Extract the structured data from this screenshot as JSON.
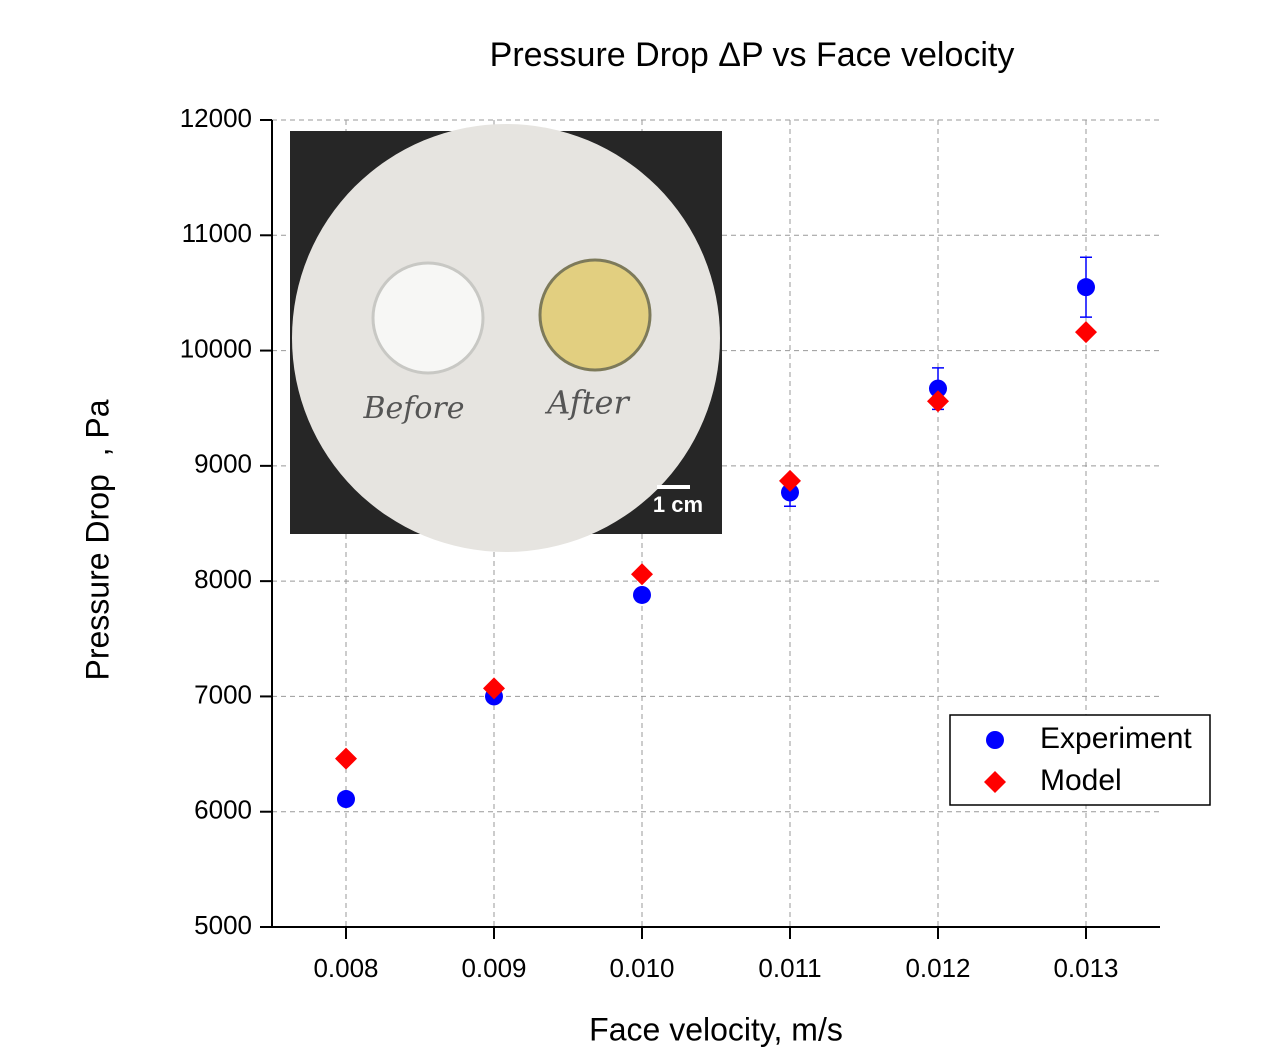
{
  "chart_data": {
    "type": "scatter",
    "title": "Pressure Drop ΔP vs Face velocity",
    "x_label": "Face velocity, m/s",
    "y_label": "Pressure Drop  , Pa",
    "x": [
      0.008,
      0.009,
      0.01,
      0.011,
      0.012,
      0.013
    ],
    "series": [
      {
        "name": "Experiment",
        "color": "#0000ff",
        "marker": "circle",
        "values": [
          6110,
          7000,
          7880,
          8770,
          9670,
          10550
        ],
        "errors": [
          50,
          30,
          40,
          120,
          180,
          260
        ]
      },
      {
        "name": "Model",
        "color": "#ff0000",
        "marker": "diamond",
        "values": [
          6460,
          7070,
          8060,
          8870,
          9560,
          10160
        ]
      }
    ],
    "xlim": [
      0.0075,
      0.0135
    ],
    "xticks": [
      0.008,
      0.009,
      {
        "value": 0.01,
        "label": "0.010"
      },
      0.011,
      0.012,
      0.013
    ],
    "ylim": [
      5000,
      12000
    ],
    "yticks": [
      5000,
      6000,
      7000,
      8000,
      9000,
      10000,
      11000,
      12000
    ],
    "grid": true,
    "legend": "right",
    "annotations": [
      "Before",
      "After",
      "1 cm"
    ]
  }
}
